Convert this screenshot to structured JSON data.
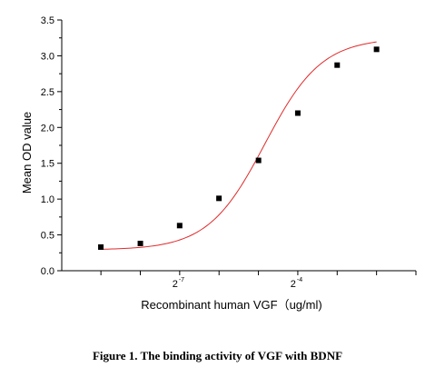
{
  "chart_data": {
    "type": "scatter",
    "xlabel": "Recombinant human VGF（ug/ml)",
    "ylabel": "Mean OD value",
    "x_scale": "log2",
    "x_ticks": [
      {
        "base": "2",
        "exp": "-7",
        "value": 0.0078125
      },
      {
        "base": "2",
        "exp": "-4",
        "value": 0.0625
      }
    ],
    "y_ticks": [
      "0.0",
      "0.5",
      "1.0",
      "1.5",
      "2.0",
      "2.5",
      "3.0",
      "3.5"
    ],
    "ylim": [
      0,
      3.5
    ],
    "xlim": [
      0.00098,
      0.5
    ],
    "grid": false,
    "series": [
      {
        "x": [
          0.00195,
          0.00391,
          0.00781,
          0.0156,
          0.0313,
          0.0625,
          0.125,
          0.25
        ],
        "y": [
          0.33,
          0.38,
          0.63,
          1.01,
          1.54,
          2.2,
          2.87,
          3.09
        ],
        "marker": "square",
        "color": "#000000"
      }
    ],
    "fit_curve": {
      "type": "4PL",
      "color": "#e02a2a"
    }
  },
  "caption": "Figure 1. The binding activity of VGF with BDNF"
}
